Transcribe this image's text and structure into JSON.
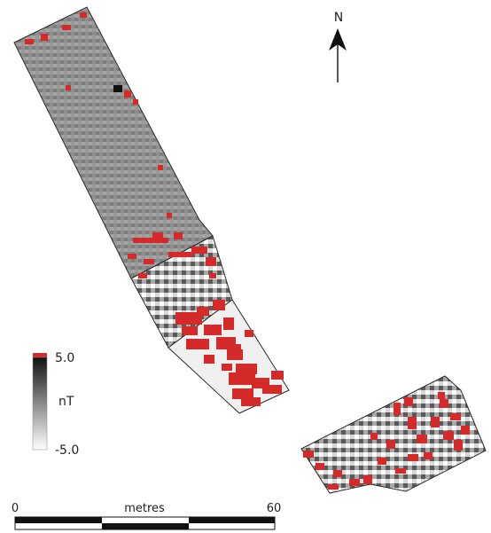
{
  "north_arrow": {
    "label": "N"
  },
  "legend": {
    "max_label": "5.0",
    "unit_label": "nT",
    "min_label": "-5.0",
    "ramp_colors": [
      "#000000",
      "#ffffff"
    ],
    "saturation_color": "#d42a2a"
  },
  "scale_bar": {
    "start_label": "0",
    "unit_label": "metres",
    "end_label": "60"
  },
  "survey": {
    "base_grey": "#8f8f8f",
    "anomaly_color": "#d42a2a",
    "edge_color": "#2a2a2a"
  }
}
